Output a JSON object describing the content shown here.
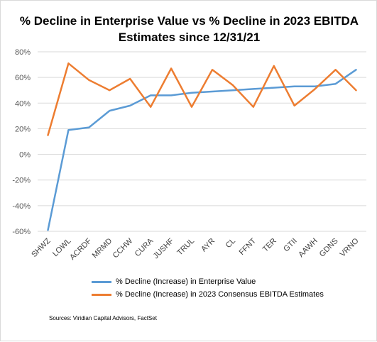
{
  "chart_data": {
    "type": "line",
    "title_lines": [
      "% Decline in Enterprise Value vs % Decline in 2023 EBITDA",
      "Estimates since 12/31/21"
    ],
    "categories": [
      "SHWZ",
      "LOWL",
      "ACRDF",
      "MRMD",
      "CCHW",
      "CURA",
      "JUSHF",
      "TRUL",
      "AYR",
      "CL",
      "FFNT",
      "TER",
      "GTII",
      "AAWH",
      "GDNS",
      "VRNO"
    ],
    "y_ticks": [
      "80%",
      "60%",
      "40%",
      "20%",
      "0%",
      "-20%",
      "-40%",
      "-60%"
    ],
    "ylim": [
      -60,
      80
    ],
    "grid": "horizontal",
    "legend_position": "bottom",
    "series": [
      {
        "name": "% Decline (Increase) in Enterprise Value",
        "color": "#5b9bd5",
        "values": [
          -59,
          19,
          21,
          34,
          38,
          46,
          46,
          48,
          49,
          50,
          51,
          52,
          53,
          53,
          55,
          66
        ]
      },
      {
        "name": "% Decline (Increase) in 2023 Consensus EBITDA Estimates",
        "color": "#ed7d31",
        "values": [
          15,
          71,
          58,
          50,
          59,
          37,
          67,
          37,
          66,
          54,
          37,
          69,
          38,
          51,
          66,
          50
        ]
      }
    ],
    "source": "Sources: Viridian Capital Advisors, FactSet"
  }
}
